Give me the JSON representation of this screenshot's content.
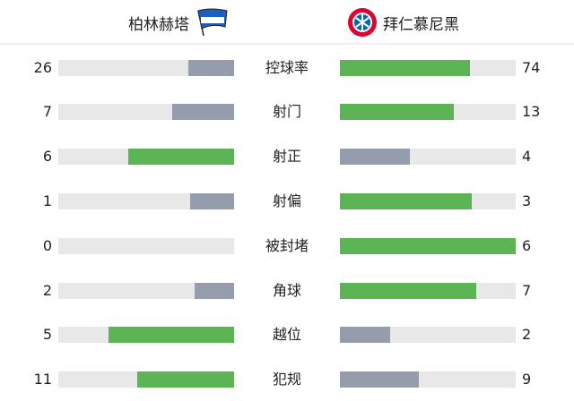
{
  "teams": {
    "home": "柏林赫塔",
    "away": "拜仁慕尼黑"
  },
  "colors": {
    "leader": "#5cb455",
    "trailer": "#959dac",
    "track": "#e8e8e8"
  },
  "stats": [
    {
      "label": "控球率",
      "home": 26,
      "away": 74
    },
    {
      "label": "射门",
      "home": 7,
      "away": 13
    },
    {
      "label": "射正",
      "home": 6,
      "away": 4
    },
    {
      "label": "射偏",
      "home": 1,
      "away": 3
    },
    {
      "label": "被封堵",
      "home": 0,
      "away": 6
    },
    {
      "label": "角球",
      "home": 2,
      "away": 7
    },
    {
      "label": "越位",
      "home": 5,
      "away": 2
    },
    {
      "label": "犯规",
      "home": 11,
      "away": 9
    }
  ]
}
